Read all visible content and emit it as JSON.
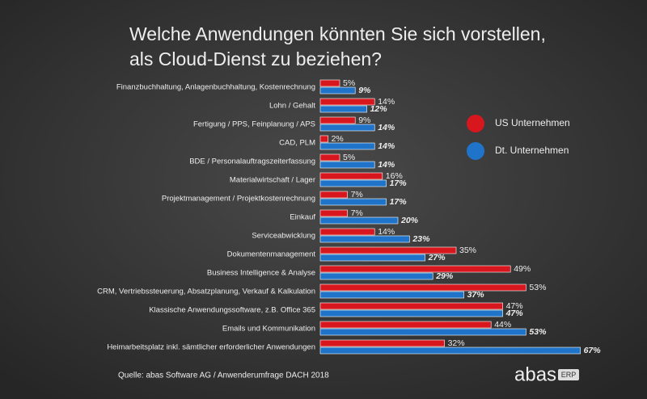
{
  "chart_data": {
    "type": "hbar",
    "title": [
      "Welche Anwendungen könnten Sie sich vorstellen,",
      "als Cloud-Dienst zu beziehen?"
    ],
    "categories": [
      "Finanzbuchhaltung, Anlagenbuchhaltung, Kostenrechnung",
      "Lohn / Gehalt",
      "Fertigung / PPS, Feinplanung / APS",
      "CAD, PLM",
      "BDE / Personalauftragszeiterfassung",
      "Materialwirtschaft / Lager",
      "Projektmanagement / Projektkostenrechnung",
      "Einkauf",
      "Serviceabwicklung",
      "Dokumentenmanagement",
      "Business Intelligence & Analyse",
      "CRM, Vertriebssteuerung, Absatzplanung, Verkauf & Kalkulation",
      "Klassische Anwendungssoftware, z.B. Office 365",
      "Emails und Kommunikation",
      "Heimarbeitsplatz inkl. sämtlicher erforderlicher Anwendungen"
    ],
    "series": [
      {
        "name": "US Unternehmen",
        "color": "#d8161e",
        "values": [
          5,
          14,
          9,
          2,
          5,
          16,
          7,
          7,
          14,
          35,
          49,
          53,
          47,
          44,
          32
        ],
        "value_labels": [
          "5%",
          "14%",
          "9%",
          "2%",
          "5%",
          "16%",
          "7%",
          "7%",
          "14%",
          "35%",
          "49%",
          "53%",
          "47%",
          "44%",
          "32%"
        ]
      },
      {
        "name": "Dt. Unternehmen",
        "color": "#1f74c9",
        "values": [
          9,
          12,
          14,
          14,
          14,
          17,
          17,
          20,
          23,
          27,
          29,
          37,
          47,
          53,
          67
        ],
        "value_labels": [
          "9%",
          "12%",
          "14%",
          "14%",
          "14%",
          "17%",
          "17%",
          "20%",
          "23%",
          "27%",
          "29%",
          "37%",
          "47%",
          "53%",
          "67%"
        ]
      }
    ],
    "source": "Quelle: abas Software AG / Anwenderumfrage DACH 2018",
    "logo": {
      "text": "abas",
      "badge": "ERP"
    }
  }
}
